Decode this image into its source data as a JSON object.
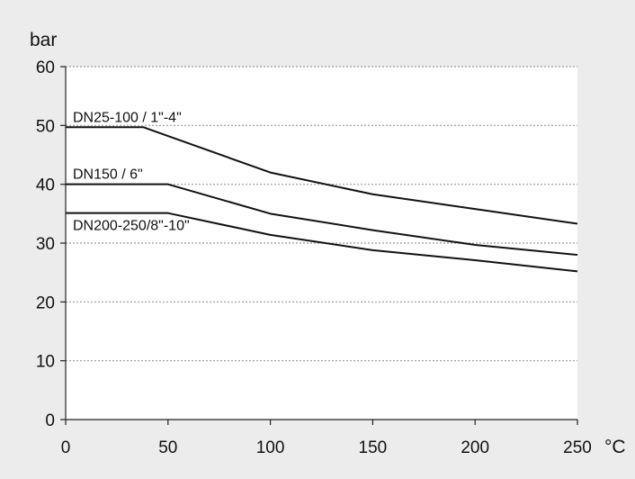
{
  "chart_data": {
    "type": "line",
    "title": "",
    "xlabel": "°C",
    "ylabel": "bar",
    "xlim": [
      0,
      250
    ],
    "ylim": [
      0,
      60
    ],
    "x_ticks": [
      0,
      50,
      100,
      150,
      200,
      250
    ],
    "y_ticks": [
      0,
      10,
      20,
      30,
      40,
      50,
      60
    ],
    "grid": "horizontal dotted",
    "legend": "none (series labelled inline)",
    "colors": {
      "background": "#ececec",
      "plot_area": "#ffffff",
      "line": "#111111",
      "grid": "#999999"
    },
    "series": [
      {
        "name": "DN25-100 / 1\"-4\"",
        "x": [
          0,
          38,
          50,
          100,
          150,
          200,
          250
        ],
        "y": [
          49.7,
          49.7,
          48.2,
          42.0,
          38.3,
          35.8,
          33.3
        ]
      },
      {
        "name": "DN150 / 6\"",
        "x": [
          0,
          50,
          100,
          150,
          200,
          250
        ],
        "y": [
          40.0,
          40.0,
          35.0,
          32.2,
          29.7,
          28.0
        ]
      },
      {
        "name": "DN200-250/8\"-10\"",
        "x": [
          0,
          50,
          100,
          150,
          200,
          250
        ],
        "y": [
          35.1,
          35.1,
          31.4,
          28.8,
          27.1,
          25.2
        ]
      }
    ]
  }
}
